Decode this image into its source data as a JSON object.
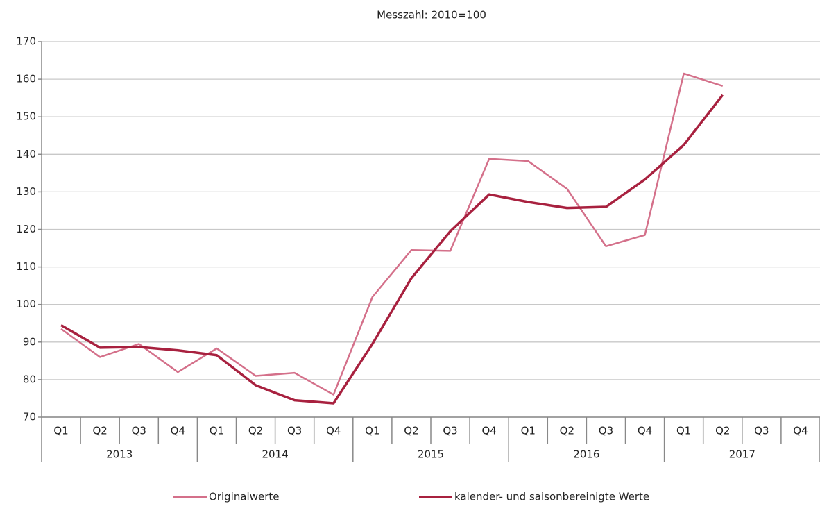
{
  "chart_data": {
    "type": "line",
    "title": "Messzahl: 2010=100",
    "categories": [
      "Q1",
      "Q2",
      "Q3",
      "Q4",
      "Q1",
      "Q2",
      "Q3",
      "Q4",
      "Q1",
      "Q2",
      "Q3",
      "Q4",
      "Q1",
      "Q2",
      "Q3",
      "Q4",
      "Q1",
      "Q2",
      "Q3",
      "Q4"
    ],
    "category_groups": [
      "2013",
      "2014",
      "2015",
      "2016",
      "2017"
    ],
    "series": [
      {
        "name": "Originalwerte",
        "color": "#d4708a",
        "values": [
          93.5,
          86,
          89.5,
          82,
          88.3,
          81,
          81.8,
          76,
          102,
          114.5,
          114.3,
          138.8,
          138.2,
          130.8,
          115.5,
          118.5,
          161.5,
          158.2,
          null,
          null
        ]
      },
      {
        "name": "kalender- und saisonbereinigte Werte",
        "color": "#a8213f",
        "values": [
          94.5,
          88.5,
          88.7,
          87.8,
          86.5,
          78.5,
          74.5,
          73.7,
          89.5,
          107,
          119.5,
          129.3,
          127.3,
          125.7,
          126,
          133.3,
          142.5,
          155.8,
          null,
          null
        ]
      }
    ],
    "ylim": [
      70,
      170
    ],
    "yticks": [
      70,
      80,
      90,
      100,
      110,
      120,
      130,
      140,
      150,
      160,
      170
    ],
    "grid": true
  }
}
